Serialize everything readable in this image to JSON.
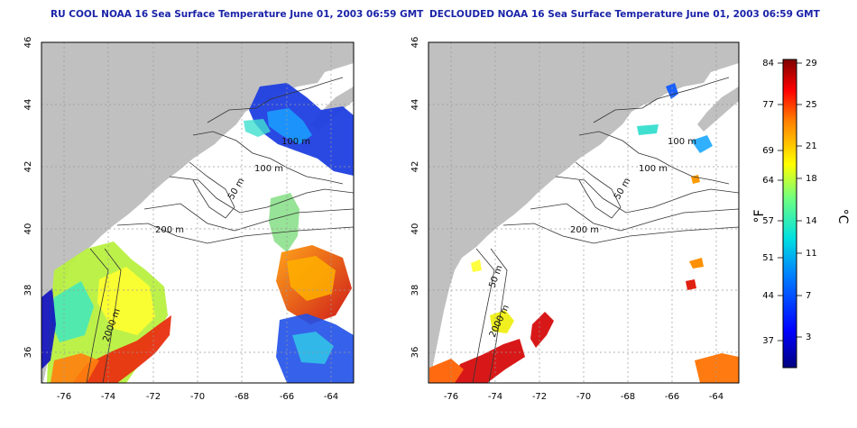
{
  "panels": [
    {
      "title": "RU COOL NOAA 16 Sea Surface Temperature June 01, 2003 06:59 GMT",
      "contour_labels": [
        "100 m",
        "50 m",
        "200 m",
        "2000 m"
      ]
    },
    {
      "title": "DECLOUDED NOAA 16 Sea Surface Temperature June 01, 2003 06:59 GMT",
      "contour_labels": [
        "100 m",
        "50 m",
        "200 m",
        "50 m",
        "2000 m"
      ]
    }
  ],
  "axes": {
    "lon_ticks": [
      "-76",
      "-74",
      "-72",
      "-70",
      "-68",
      "-66",
      "-64"
    ],
    "lat_ticks": [
      "36",
      "38",
      "40",
      "42",
      "44",
      "46"
    ],
    "lon_range": [
      -77,
      -63
    ],
    "lat_range": [
      35,
      46
    ]
  },
  "colorbar": {
    "fahrenheit_label": "°F",
    "celsius_label": "°C",
    "fahrenheit_ticks": [
      "84",
      "77",
      "69",
      "64",
      "57",
      "51",
      "44",
      "37"
    ],
    "celsius_ticks": [
      "29",
      "25",
      "21",
      "18",
      "14",
      "11",
      "7",
      "3"
    ],
    "celsius_range": [
      0,
      29
    ]
  },
  "colors": {
    "land": "#c0c0c0",
    "title": "#1a23a8",
    "grid": "#9a9a9a"
  }
}
